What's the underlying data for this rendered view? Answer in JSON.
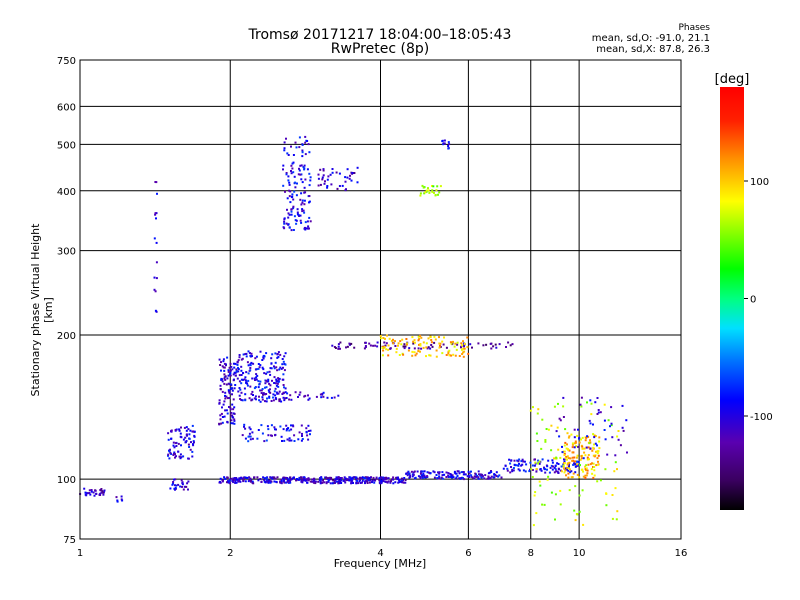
{
  "header": {
    "title_line1": "Tromsø 20171217 18:04:00–18:05:43",
    "title_line2": "RwPretec (8p)"
  },
  "stats": {
    "heading": "Phases",
    "line_o": "mean, sd,O: -91.0, 21.1",
    "line_x": "mean, sd,X:  87.8, 26.3"
  },
  "colorbar": {
    "label": "[deg]",
    "ticks": [
      "100",
      "0",
      "-100"
    ],
    "tick_values": [
      100,
      0,
      -100
    ],
    "range": [
      -180,
      180
    ]
  },
  "chart_data": {
    "type": "scatter",
    "xlabel": "Frequency [MHz]",
    "ylabel": "Stationary phase Virtual Height [km]",
    "x_scale": "log",
    "y_scale": "log",
    "xlim": [
      1,
      16
    ],
    "ylim": [
      75,
      750
    ],
    "x_ticks": [
      1,
      2,
      4,
      6,
      8,
      10,
      16
    ],
    "y_ticks": [
      75,
      100,
      200,
      300,
      400,
      500,
      600,
      750
    ],
    "grid": true,
    "clusters": [
      {
        "f": [
          1.0,
          1.12
        ],
        "h": [
          92,
          96
        ],
        "phase": -110,
        "n": 30
      },
      {
        "f": [
          1.18,
          1.22
        ],
        "h": [
          88,
          92
        ],
        "phase": -100,
        "n": 6
      },
      {
        "f": [
          1.41,
          1.43
        ],
        "h": [
          200,
          470
        ],
        "phase": -110,
        "n": 16
      },
      {
        "f": [
          1.5,
          1.65
        ],
        "h": [
          95,
          100
        ],
        "phase": -105,
        "n": 25
      },
      {
        "f": [
          1.5,
          1.7
        ],
        "h": [
          110,
          130
        ],
        "phase": -100,
        "n": 80
      },
      {
        "f": [
          1.9,
          2.05
        ],
        "h": [
          130,
          180
        ],
        "phase": -105,
        "n": 110
      },
      {
        "f": [
          2.05,
          2.6
        ],
        "h": [
          145,
          185
        ],
        "phase": -95,
        "n": 200
      },
      {
        "f": [
          2.2,
          3.3
        ],
        "h": [
          146,
          152
        ],
        "phase": -110,
        "n": 50
      },
      {
        "f": [
          2.1,
          2.9
        ],
        "h": [
          120,
          130
        ],
        "phase": -90,
        "n": 70
      },
      {
        "f": [
          1.9,
          4.5
        ],
        "h": [
          98,
          101
        ],
        "phase": -105,
        "n": 380
      },
      {
        "f": [
          4.5,
          7.0
        ],
        "h": [
          100,
          104
        ],
        "phase": -100,
        "n": 150
      },
      {
        "f": [
          7.0,
          10.0
        ],
        "h": [
          103,
          110
        ],
        "phase": -95,
        "n": 110
      },
      {
        "f": [
          2.55,
          2.9
        ],
        "h": [
          330,
          520
        ],
        "phase": -95,
        "n": 140
      },
      {
        "f": [
          3.0,
          3.6
        ],
        "h": [
          400,
          450
        ],
        "phase": -110,
        "n": 40
      },
      {
        "f": [
          3.2,
          7.5
        ],
        "h": [
          187,
          193
        ],
        "phase": -125,
        "n": 80
      },
      {
        "f": [
          4.0,
          6.0
        ],
        "h": [
          180,
          200
        ],
        "phase": 100,
        "n": 110
      },
      {
        "f": [
          4.8,
          5.3
        ],
        "h": [
          390,
          410
        ],
        "phase": 60,
        "n": 25
      },
      {
        "f": [
          5.3,
          5.5
        ],
        "h": [
          490,
          510
        ],
        "phase": -100,
        "n": 12
      },
      {
        "f": [
          9.3,
          11.0
        ],
        "h": [
          100,
          125
        ],
        "phase": 105,
        "n": 130
      },
      {
        "f": [
          8.0,
          12.0
        ],
        "h": [
          80,
          145
        ],
        "phase": 70,
        "n": 90
      },
      {
        "f": [
          9.0,
          12.5
        ],
        "h": [
          110,
          150
        ],
        "phase": -100,
        "n": 50
      }
    ]
  }
}
